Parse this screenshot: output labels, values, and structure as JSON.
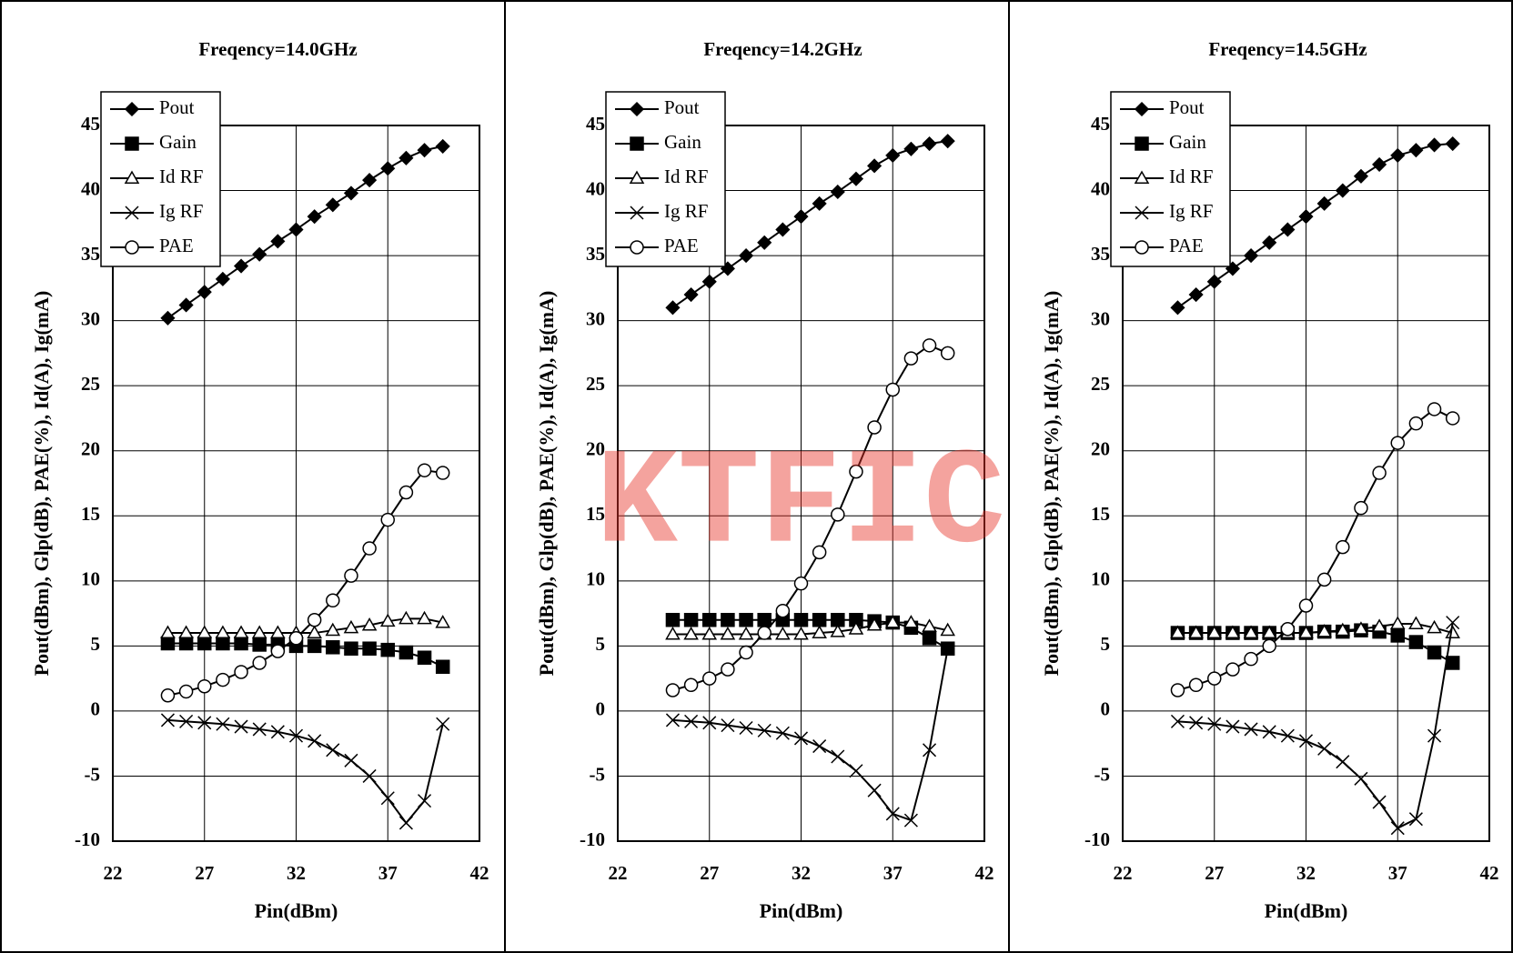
{
  "watermark": "KTFIC",
  "chart_data": [
    {
      "type": "line",
      "title": "Freqency=14.0GHz",
      "xlabel": "Pin(dBm)",
      "ylabel": "Pout(dBm), Glp(dB), PAE(%), Id(A), Ig(mA)",
      "x": [
        25,
        26,
        27,
        28,
        29,
        30,
        31,
        32,
        33,
        34,
        35,
        36,
        37,
        38,
        39,
        40
      ],
      "series": [
        {
          "name": "Pout",
          "marker": "diamond",
          "color": "#000000",
          "values": [
            30.2,
            31.2,
            32.2,
            33.2,
            34.2,
            35.1,
            36.1,
            37.0,
            38.0,
            38.9,
            39.8,
            40.8,
            41.7,
            42.5,
            43.1,
            43.4
          ]
        },
        {
          "name": "Gain",
          "marker": "square",
          "color": "#000000",
          "values": [
            5.2,
            5.2,
            5.2,
            5.2,
            5.2,
            5.1,
            5.1,
            5.0,
            5.0,
            4.9,
            4.8,
            4.8,
            4.7,
            4.5,
            4.1,
            3.4
          ]
        },
        {
          "name": "Id RF",
          "marker": "triangle",
          "color": "#000000",
          "values": [
            6.0,
            6.0,
            6.0,
            6.0,
            6.0,
            6.0,
            6.0,
            6.0,
            6.0,
            6.2,
            6.4,
            6.6,
            6.9,
            7.1,
            7.1,
            6.8
          ]
        },
        {
          "name": "Ig RF",
          "marker": "x",
          "color": "#000000",
          "values": [
            -0.7,
            -0.8,
            -0.9,
            -1.0,
            -1.2,
            -1.4,
            -1.6,
            -1.9,
            -2.3,
            -3.0,
            -3.8,
            -5.0,
            -6.7,
            -8.6,
            -6.9,
            -1.0
          ]
        },
        {
          "name": "PAE",
          "marker": "circle",
          "color": "#000000",
          "values": [
            1.2,
            1.5,
            1.9,
            2.4,
            3.0,
            3.7,
            4.6,
            5.6,
            7.0,
            8.5,
            10.4,
            12.5,
            14.7,
            16.8,
            18.5,
            18.3
          ]
        }
      ],
      "xlim": [
        22,
        42
      ],
      "xticks": [
        22,
        27,
        32,
        37,
        42
      ],
      "ylim": [
        -10,
        45
      ],
      "yticks": [
        -10,
        -5,
        0,
        5,
        10,
        15,
        20,
        25,
        30,
        35,
        40,
        45
      ],
      "grid": true,
      "legend": "upper left"
    },
    {
      "type": "line",
      "title": "Freqency=14.2GHz",
      "xlabel": "Pin(dBm)",
      "ylabel": "Pout(dBm), Glp(dB), PAE(%), Id(A), Ig(mA)",
      "x": [
        25,
        26,
        27,
        28,
        29,
        30,
        31,
        32,
        33,
        34,
        35,
        36,
        37,
        38,
        39,
        40
      ],
      "series": [
        {
          "name": "Pout",
          "marker": "diamond",
          "color": "#000000",
          "values": [
            31.0,
            32.0,
            33.0,
            34.0,
            35.0,
            36.0,
            37.0,
            38.0,
            39.0,
            39.9,
            40.9,
            41.9,
            42.7,
            43.2,
            43.6,
            43.8
          ]
        },
        {
          "name": "Gain",
          "marker": "square",
          "color": "#000000",
          "values": [
            7.0,
            7.0,
            7.0,
            7.0,
            7.0,
            7.0,
            7.0,
            7.0,
            7.0,
            7.0,
            7.0,
            6.9,
            6.8,
            6.4,
            5.6,
            4.8
          ]
        },
        {
          "name": "Id RF",
          "marker": "triangle",
          "color": "#000000",
          "values": [
            5.9,
            5.9,
            5.9,
            5.9,
            5.9,
            5.9,
            5.9,
            5.9,
            6.0,
            6.1,
            6.3,
            6.6,
            6.8,
            6.8,
            6.5,
            6.2
          ]
        },
        {
          "name": "Ig RF",
          "marker": "x",
          "color": "#000000",
          "values": [
            -0.7,
            -0.8,
            -0.9,
            -1.1,
            -1.3,
            -1.5,
            -1.7,
            -2.1,
            -2.7,
            -3.5,
            -4.6,
            -6.1,
            -7.9,
            -8.4,
            -3.0,
            4.8
          ]
        },
        {
          "name": "PAE",
          "marker": "circle",
          "color": "#000000",
          "values": [
            1.6,
            2.0,
            2.5,
            3.2,
            4.5,
            6.0,
            7.7,
            9.8,
            12.2,
            15.1,
            18.4,
            21.8,
            24.7,
            27.1,
            28.1,
            27.5
          ]
        }
      ],
      "xlim": [
        22,
        42
      ],
      "xticks": [
        22,
        27,
        32,
        37,
        42
      ],
      "ylim": [
        -10,
        45
      ],
      "yticks": [
        -10,
        -5,
        0,
        5,
        10,
        15,
        20,
        25,
        30,
        35,
        40,
        45
      ],
      "grid": true,
      "legend": "upper left"
    },
    {
      "type": "line",
      "title": "Freqency=14.5GHz",
      "xlabel": "Pin(dBm)",
      "ylabel": "Pout(dBm), Glp(dB), PAE(%), Id(A), Ig(mA)",
      "x": [
        25,
        26,
        27,
        28,
        29,
        30,
        31,
        32,
        33,
        34,
        35,
        36,
        37,
        38,
        39,
        40
      ],
      "series": [
        {
          "name": "Pout",
          "marker": "diamond",
          "color": "#000000",
          "values": [
            31.0,
            32.0,
            33.0,
            34.0,
            35.0,
            36.0,
            37.0,
            38.0,
            39.0,
            40.0,
            41.1,
            42.0,
            42.7,
            43.1,
            43.5,
            43.6
          ]
        },
        {
          "name": "Gain",
          "marker": "square",
          "color": "#000000",
          "values": [
            6.0,
            6.0,
            6.0,
            6.0,
            6.0,
            6.0,
            6.0,
            6.0,
            6.1,
            6.1,
            6.2,
            6.1,
            5.8,
            5.3,
            4.5,
            3.7
          ]
        },
        {
          "name": "Id RF",
          "marker": "triangle",
          "color": "#000000",
          "values": [
            6.0,
            6.0,
            6.0,
            6.0,
            6.0,
            6.0,
            6.0,
            6.0,
            6.1,
            6.2,
            6.3,
            6.5,
            6.7,
            6.7,
            6.4,
            6.0
          ]
        },
        {
          "name": "Ig RF",
          "marker": "x",
          "color": "#000000",
          "values": [
            -0.8,
            -0.9,
            -1.0,
            -1.2,
            -1.4,
            -1.6,
            -1.9,
            -2.3,
            -2.9,
            -3.9,
            -5.2,
            -7.0,
            -9.0,
            -8.3,
            -1.9,
            6.8
          ]
        },
        {
          "name": "PAE",
          "marker": "circle",
          "color": "#000000",
          "values": [
            1.6,
            2.0,
            2.5,
            3.2,
            4.0,
            5.0,
            6.3,
            8.1,
            10.1,
            12.6,
            15.6,
            18.3,
            20.6,
            22.1,
            23.2,
            22.5
          ]
        }
      ],
      "xlim": [
        22,
        42
      ],
      "xticks": [
        22,
        27,
        32,
        37,
        42
      ],
      "ylim": [
        -10,
        45
      ],
      "yticks": [
        -10,
        -5,
        0,
        5,
        10,
        15,
        20,
        25,
        30,
        35,
        40,
        45
      ],
      "grid": true,
      "legend": "upper left"
    }
  ]
}
